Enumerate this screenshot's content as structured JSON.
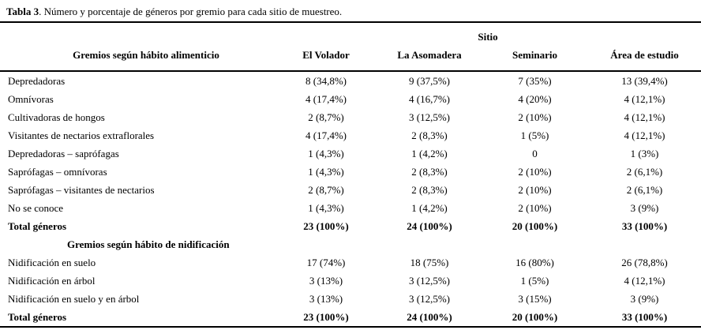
{
  "caption": {
    "label": "Tabla 3",
    "text": ". Número y porcentaje de géneros por gremio para cada sitio de muestreo."
  },
  "table": {
    "group_header": "Sitio",
    "col1_header": "Gremios según hábito alimenticio",
    "site_headers": [
      "El Volador",
      "La Asomadera",
      "Seminario",
      "Área de estudio"
    ],
    "sections": [
      {
        "rows": [
          {
            "label": "Depredadoras",
            "values": [
              "8 (34,8%)",
              "9 (37,5%)",
              "7 (35%)",
              "13 (39,4%)"
            ],
            "bold": false
          },
          {
            "label": "Omnívoras",
            "values": [
              "4 (17,4%)",
              "4 (16,7%)",
              "4 (20%)",
              "4 (12,1%)"
            ],
            "bold": false
          },
          {
            "label": "Cultivadoras de hongos",
            "values": [
              "2 (8,7%)",
              "3 (12,5%)",
              "2 (10%)",
              "4 (12,1%)"
            ],
            "bold": false
          },
          {
            "label": "Visitantes de nectarios extraflorales",
            "values": [
              "4 (17,4%)",
              "2 (8,3%)",
              "1 (5%)",
              "4 (12,1%)"
            ],
            "bold": false
          },
          {
            "label": "Depredadoras – saprófagas",
            "values": [
              "1 (4,3%)",
              "1 (4,2%)",
              "0",
              "1 (3%)"
            ],
            "bold": false
          },
          {
            "label": "Saprófagas – omnívoras",
            "values": [
              "1 (4,3%)",
              "2 (8,3%)",
              "2 (10%)",
              "2 (6,1%)"
            ],
            "bold": false
          },
          {
            "label": "Saprófagas – visitantes de nectarios",
            "values": [
              "2 (8,7%)",
              "2 (8,3%)",
              "2 (10%)",
              "2 (6,1%)"
            ],
            "bold": false
          },
          {
            "label": "No se conoce",
            "values": [
              "1 (4,3%)",
              "1 (4,2%)",
              "2 (10%)",
              "3 (9%)"
            ],
            "bold": false
          },
          {
            "label": "Total géneros",
            "values": [
              "23 (100%)",
              "24 (100%)",
              "20 (100%)",
              "33 (100%)"
            ],
            "bold": true
          }
        ]
      },
      {
        "subheader": "Gremios según hábito de nidificación",
        "rows": [
          {
            "label": "Nidificación en suelo",
            "values": [
              "17 (74%)",
              "18 (75%)",
              "16 (80%)",
              "26 (78,8%)"
            ],
            "bold": false
          },
          {
            "label": "Nidificación en árbol",
            "values": [
              "3 (13%)",
              "3 (12,5%)",
              "1 (5%)",
              "4 (12,1%)"
            ],
            "bold": false
          },
          {
            "label": "Nidificación en suelo y en árbol",
            "values": [
              "3 (13%)",
              "3 (12,5%)",
              "3 (15%)",
              "3 (9%)"
            ],
            "bold": false
          },
          {
            "label": "Total géneros",
            "values": [
              "23 (100%)",
              "24 (100%)",
              "20 (100%)",
              "33 (100%)"
            ],
            "bold": true
          }
        ]
      }
    ]
  },
  "colors": {
    "text": "#000000",
    "background": "#ffffff",
    "rule": "#000000"
  }
}
